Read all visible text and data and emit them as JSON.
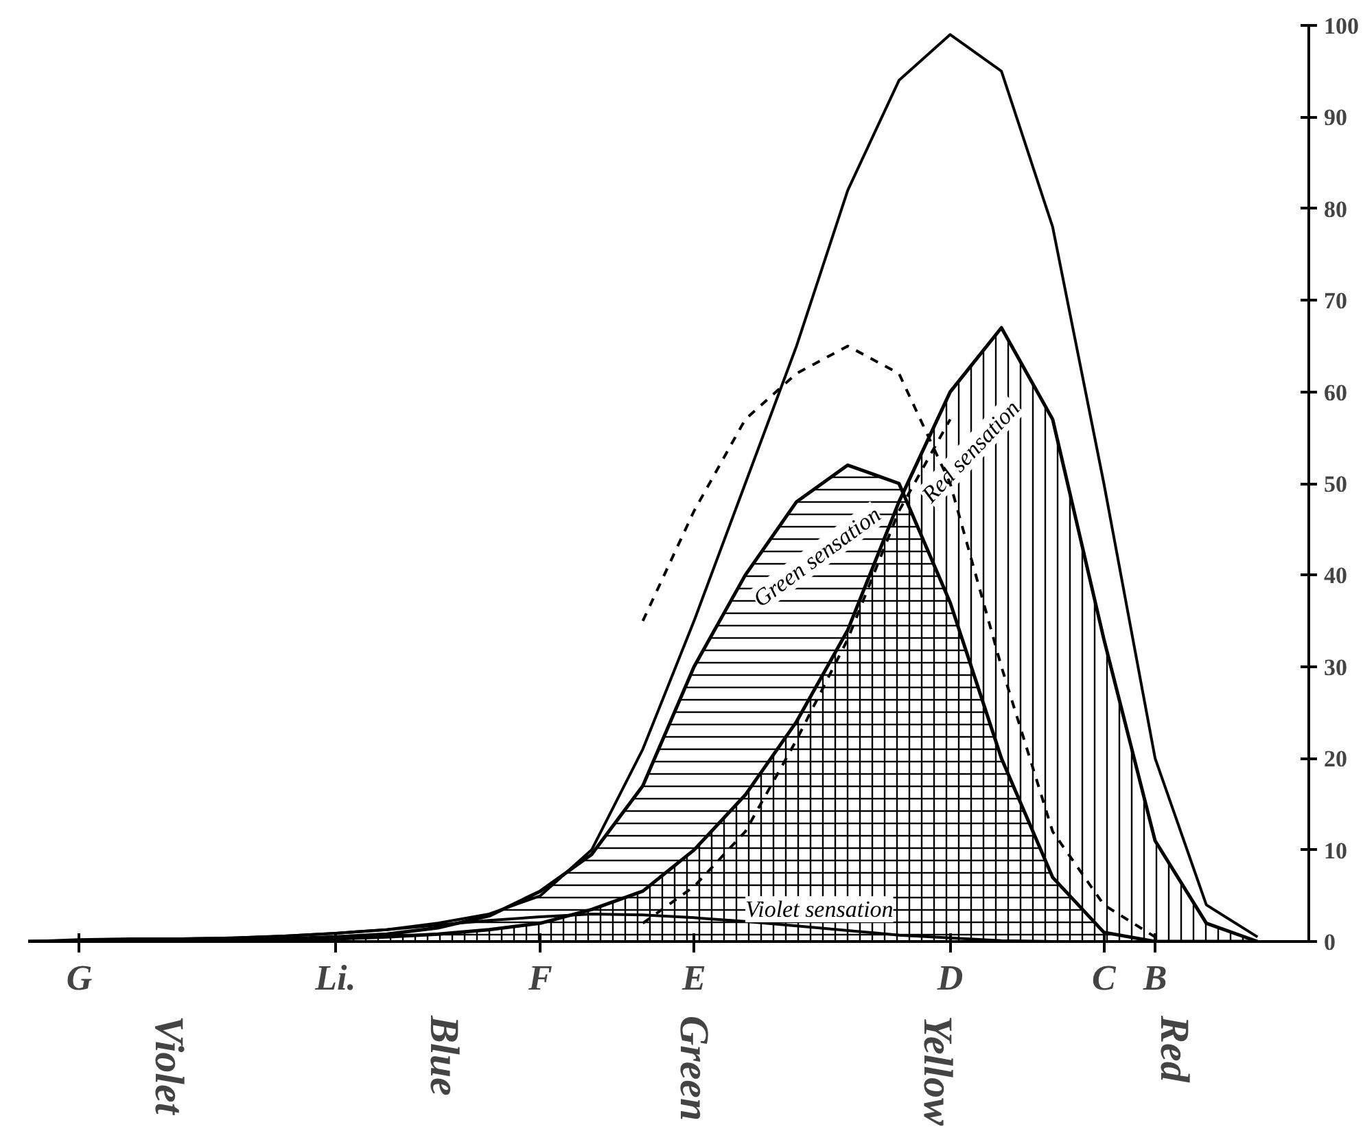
{
  "chart_data": {
    "type": "line",
    "ylim": [
      0,
      100
    ],
    "yticks": [
      0,
      10,
      20,
      30,
      40,
      50,
      60,
      70,
      80,
      90,
      100
    ],
    "categories": [
      null,
      "G",
      null,
      null,
      null,
      null,
      "Li.",
      null,
      null,
      null,
      "F",
      null,
      null,
      "E",
      null,
      null,
      null,
      null,
      "D",
      null,
      null,
      "C",
      "B",
      null,
      null
    ],
    "annotations": [
      "Violet",
      "Blue",
      "Green",
      "Yellow",
      "Red"
    ],
    "grid": false,
    "series": [
      {
        "color": "#000000",
        "values": [
          0,
          0.1,
          0.2,
          0.3,
          0.4,
          0.6,
          0.9,
          1.3,
          2,
          3,
          5,
          10,
          21,
          35,
          50,
          65,
          82,
          94,
          99,
          95,
          78,
          50,
          20,
          4,
          0.5
        ]
      },
      {
        "type": "area",
        "name": "Green sensation",
        "color": "#000000",
        "values": [
          0,
          0,
          0.1,
          0.1,
          0.2,
          0.3,
          0.5,
          0.8,
          1.5,
          2.8,
          5.5,
          9.5,
          17,
          30,
          40,
          48,
          52,
          50,
          37,
          20,
          7,
          1,
          0,
          0,
          0
        ]
      },
      {
        "type": "area",
        "name": "Red sensation",
        "color": "#000000",
        "values": [
          0,
          0,
          0,
          0,
          0,
          0.2,
          0.3,
          0.5,
          0.8,
          1.3,
          2,
          3.5,
          5.5,
          10,
          16,
          24,
          34,
          48,
          60,
          67,
          57,
          33,
          11,
          2,
          0
        ]
      },
      {
        "name": "Violet sensation",
        "color": "#000000",
        "values": [
          0,
          0.2,
          0.3,
          0.3,
          0.4,
          0.6,
          0.9,
          1.3,
          1.8,
          2.3,
          2.7,
          3,
          2.9,
          2.6,
          2.2,
          1.7,
          1.2,
          0.7,
          0.4,
          0.1,
          0,
          null,
          null,
          null,
          null
        ]
      },
      {
        "line_style": "dashed",
        "color": "#000000",
        "values": [
          null,
          null,
          null,
          null,
          null,
          null,
          null,
          null,
          null,
          null,
          null,
          null,
          35,
          47,
          57,
          62,
          65,
          62,
          50,
          30,
          12,
          4,
          0.5,
          null,
          null
        ]
      },
      {
        "line_style": "dashed",
        "color": "#000000",
        "values": [
          null,
          null,
          null,
          null,
          null,
          null,
          null,
          null,
          null,
          null,
          null,
          null,
          2,
          6,
          12,
          22,
          33,
          47,
          57,
          null,
          null,
          null,
          null,
          null,
          null
        ]
      }
    ]
  }
}
